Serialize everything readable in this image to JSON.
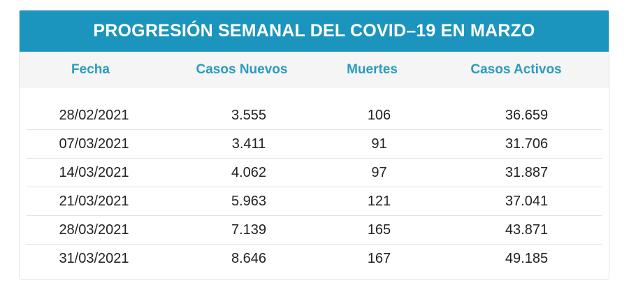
{
  "table": {
    "title": "PROGRESIÓN SEMANAL DEL COVID–19 EN MARZO",
    "columns": [
      "Fecha",
      "Casos Nuevos",
      "Muertes",
      "Casos Activos"
    ],
    "rows": [
      [
        "28/02/2021",
        "3.555",
        "106",
        "36.659"
      ],
      [
        "07/03/2021",
        "3.411",
        "91",
        "31.706"
      ],
      [
        "14/03/2021",
        "4.062",
        "97",
        "31.887"
      ],
      [
        "21/03/2021",
        "5.963",
        "121",
        "37.041"
      ],
      [
        "28/03/2021",
        "7.139",
        "165",
        "43.871"
      ],
      [
        "31/03/2021",
        "8.646",
        "167",
        "49.185"
      ]
    ]
  },
  "colors": {
    "title_bar": "#1b95bd",
    "header_text": "#2b9bc3",
    "header_background": "#f5f5f5",
    "cell_text": "#222222",
    "row_divider": "#e3e3e3"
  }
}
